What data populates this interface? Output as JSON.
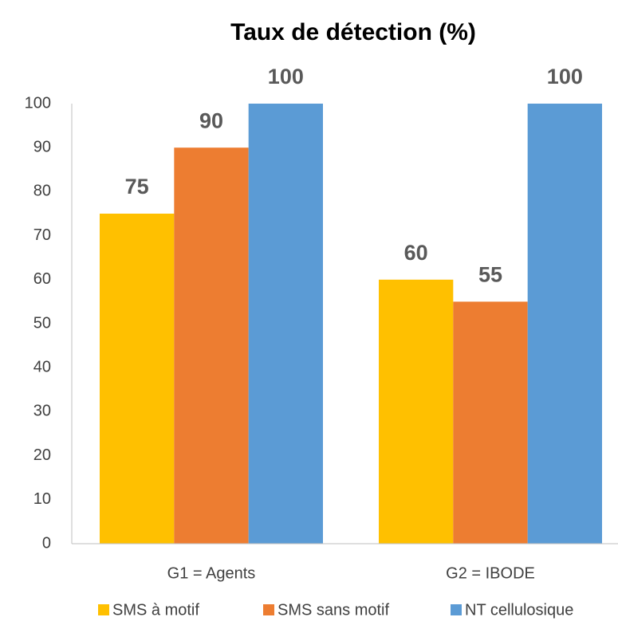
{
  "chart_data": {
    "type": "bar",
    "title": "Taux de détection (%)",
    "categories": [
      "G1 = Agents",
      "G2 = IBODE"
    ],
    "series": [
      {
        "name": "SMS à motif",
        "color": "#FFC000",
        "values": [
          75,
          60
        ]
      },
      {
        "name": "SMS sans motif",
        "color": "#ED7D31",
        "values": [
          90,
          55
        ]
      },
      {
        "name": "NT cellulosique",
        "color": "#5B9BD5",
        "values": [
          100,
          100
        ]
      }
    ],
    "ylim": [
      0,
      100
    ],
    "yticks": [
      0,
      10,
      20,
      30,
      40,
      50,
      60,
      70,
      80,
      90,
      100
    ],
    "legend": "bottom"
  }
}
